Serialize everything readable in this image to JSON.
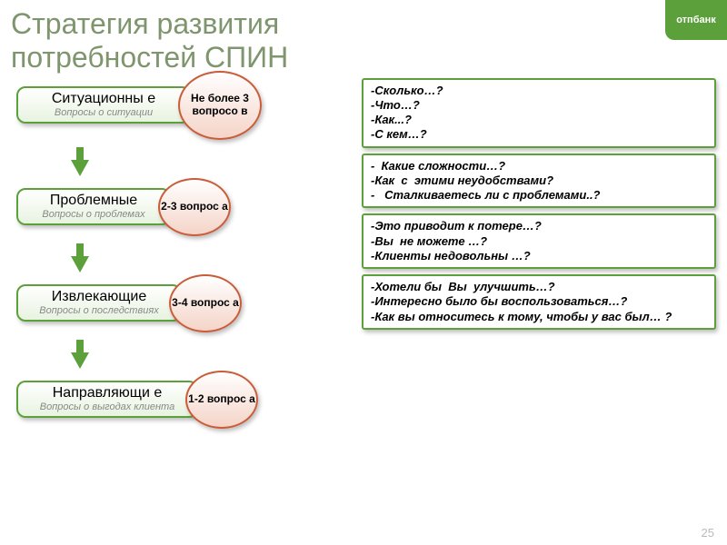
{
  "title_line1": "Стратегия развития",
  "title_line2": "потребностей СПИН",
  "logo": "отпбанк",
  "page_number": "25",
  "colors": {
    "accent_green": "#5ca03c",
    "badge_border": "#c95d3a",
    "title_color": "#7f956d"
  },
  "stages": [
    {
      "title": "Ситуационны\nе",
      "subtitle": "Вопросы о ситуации",
      "count": "Не более 3 вопросо\nв"
    },
    {
      "title": "Проблемные",
      "subtitle": "Вопросы о проблемах",
      "count": "2-3 вопрос\nа"
    },
    {
      "title": "Извлекающие",
      "subtitle": "Вопросы о последствиях",
      "count": "3-4 вопрос\nа"
    },
    {
      "title": "Направляющи\nе",
      "subtitle": "Вопросы о выгодах клиента",
      "count": "1-2 вопрос\nа"
    }
  ],
  "examples": [
    "-Сколько…?\n-Что…?\n-Как...?\n-С кем…?",
    "-  Какие сложности…?\n-Как  с  этими неудобствами?\n-   Сталкиваетесь ли с проблемами..?",
    "-Это приводит к потере…?\n-Вы  не можете …?\n-Клиенты недовольны …?",
    "-Хотели бы  Вы  улучшить…?\n-Интересно было бы воспользоваться…?\n-Как вы относитесь к тому, чтобы у вас был… ?"
  ]
}
